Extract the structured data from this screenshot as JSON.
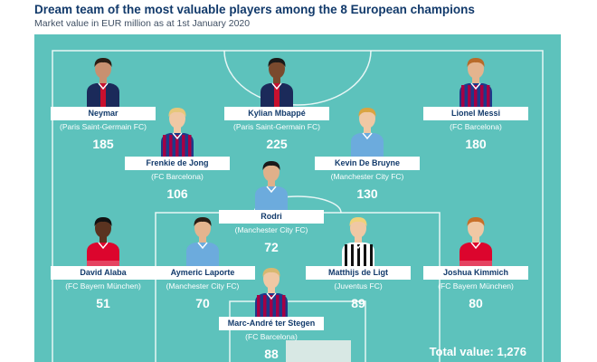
{
  "header": {
    "title": "Dream team of the most valuable players among the 8 European champions",
    "subtitle": "Market value in EUR million as at 1st January 2020"
  },
  "players": [
    {
      "name": "Neymar",
      "club": "(Paris Saint-Germain FC)",
      "value": "185",
      "kit": "psg"
    },
    {
      "name": "Kylian Mbappé",
      "club": "(Paris Saint-Germain FC)",
      "value": "225",
      "kit": "psg"
    },
    {
      "name": "Lionel Messi",
      "club": "(FC Barcelona)",
      "value": "180",
      "kit": "barca"
    },
    {
      "name": "Frenkie de Jong",
      "club": "(FC Barcelona)",
      "value": "106",
      "kit": "barca"
    },
    {
      "name": "Kevin De Bruyne",
      "club": "(Manchester City FC)",
      "value": "130",
      "kit": "city"
    },
    {
      "name": "Rodri",
      "club": "(Manchester City FC)",
      "value": "72",
      "kit": "city"
    },
    {
      "name": "David Alaba",
      "club": "(FC Bayern München)",
      "value": "51",
      "kit": "bayern"
    },
    {
      "name": "Aymeric Laporte",
      "club": "(Manchester City FC)",
      "value": "70",
      "kit": "city"
    },
    {
      "name": "Matthijs de Ligt",
      "club": "(Juventus FC)",
      "value": "89",
      "kit": "juve"
    },
    {
      "name": "Joshua Kimmich",
      "club": "(FC Bayern München)",
      "value": "80",
      "kit": "bayern"
    },
    {
      "name": "Marc-André ter Stegen",
      "club": "(FC Barcelona)",
      "value": "88",
      "kit": "barca"
    }
  ],
  "total": "Total value: 1,276",
  "colors": {
    "pitch": "#5dc2bc",
    "title": "#123a6b",
    "label_bg": "#ffffff"
  }
}
